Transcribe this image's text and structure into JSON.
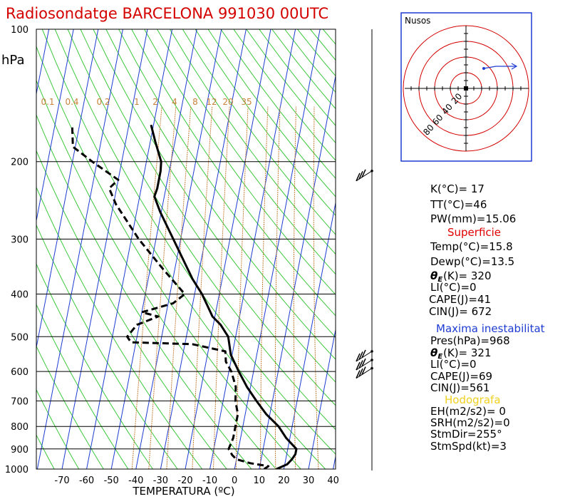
{
  "title": "Radiosondatge BARCELONA 991030 00UTC",
  "colors": {
    "title": "#d40000",
    "isotherm": "#1e3cd2",
    "dry_adiabat": "#3cc83c",
    "mixing_ratio": "#c8823c",
    "hodograph": "#d40000",
    "hodo_frame": "#1e3cd2"
  },
  "chart_data": {
    "type": "skew-t",
    "yunit": "hPa",
    "xlabel": "TEMPERATURA (ºC)",
    "pressure_ticks": [
      100,
      200,
      300,
      400,
      500,
      600,
      700,
      800,
      900,
      1000
    ],
    "temperature_ticks": [
      -70,
      -60,
      -50,
      -40,
      -30,
      -20,
      -10,
      0,
      10,
      20,
      30,
      40
    ],
    "mixing_ratio_labels": [
      "0.1",
      "0.4",
      "0.2",
      "1",
      "2",
      "4",
      "8",
      "12",
      "20",
      "35"
    ],
    "temperature_profile": [
      [
        1000,
        17
      ],
      [
        975,
        21
      ],
      [
        950,
        22.5
      ],
      [
        925,
        23.5
      ],
      [
        900,
        23.5
      ],
      [
        850,
        18.5
      ],
      [
        800,
        14.5
      ],
      [
        750,
        8.5
      ],
      [
        700,
        3.5
      ],
      [
        650,
        -1.5
      ],
      [
        600,
        -6
      ],
      [
        550,
        -10.5
      ],
      [
        500,
        -13
      ],
      [
        470,
        -17
      ],
      [
        450,
        -21
      ],
      [
        420,
        -24.5
      ],
      [
        400,
        -27
      ],
      [
        370,
        -32
      ],
      [
        330,
        -38
      ],
      [
        300,
        -43
      ],
      [
        260,
        -50.5
      ],
      [
        240,
        -54
      ],
      [
        230,
        -53.5
      ],
      [
        220,
        -53.5
      ],
      [
        210,
        -53.5
      ],
      [
        200,
        -54
      ],
      [
        180,
        -58
      ],
      [
        165,
        -61
      ]
    ],
    "dewpoint_profile": [
      [
        1000,
        12
      ],
      [
        985,
        13.5
      ],
      [
        970,
        6
      ],
      [
        950,
        0
      ],
      [
        930,
        -2
      ],
      [
        900,
        -4
      ],
      [
        850,
        -3
      ],
      [
        800,
        -3
      ],
      [
        750,
        -3
      ],
      [
        700,
        -5
      ],
      [
        650,
        -6
      ],
      [
        600,
        -9
      ],
      [
        570,
        -12
      ],
      [
        540,
        -13
      ],
      [
        520,
        -27
      ],
      [
        515,
        -52
      ],
      [
        500,
        -54
      ],
      [
        470,
        -51
      ],
      [
        450,
        -43
      ],
      [
        440,
        -50
      ],
      [
        420,
        -38
      ],
      [
        400,
        -34
      ],
      [
        350,
        -45
      ],
      [
        300,
        -57
      ],
      [
        250,
        -69
      ],
      [
        230,
        -73
      ],
      [
        220,
        -70
      ],
      [
        200,
        -82
      ],
      [
        185,
        -91
      ],
      [
        165,
        -93
      ]
    ],
    "wind_barbs": [
      {
        "pressure": 210
      },
      {
        "pressure": 540
      },
      {
        "pressure": 565
      },
      {
        "pressure": 590
      }
    ]
  },
  "hodograph": {
    "title": "Nusos",
    "ring_labels": [
      "80",
      "60",
      "40",
      "20"
    ]
  },
  "stats": {
    "k": "K(°C)= 17",
    "tt": "TT(°C)=46",
    "pw": "PW(mm)=15.06",
    "surface_header": "Superficie",
    "surface": {
      "temp": "Temp(°C)=15.8",
      "dewp": "Dewp(°C)=13.5",
      "thetae": "(K)=  320",
      "li": "LI(°C)=0",
      "cape": "CAPE(J)=41",
      "cin": "CIN(J)=  672"
    },
    "maxinst_header": "Maxima inestabilitat",
    "maxinst": {
      "pres": "Pres(hPa)=968",
      "thetae": "(K)=  321",
      "li": "LI(°C)=0",
      "cape": "CAPE(J)=69",
      "cin": "CIN(J)=561"
    },
    "hodo_header": "Hodografa",
    "hodo": {
      "eh": "EH(m2/s2)= 0",
      "srh": "SRH(m2/s2)=0",
      "stmdir": "StmDir=255°",
      "stmspd": "StmSpd(kt)=3"
    }
  }
}
